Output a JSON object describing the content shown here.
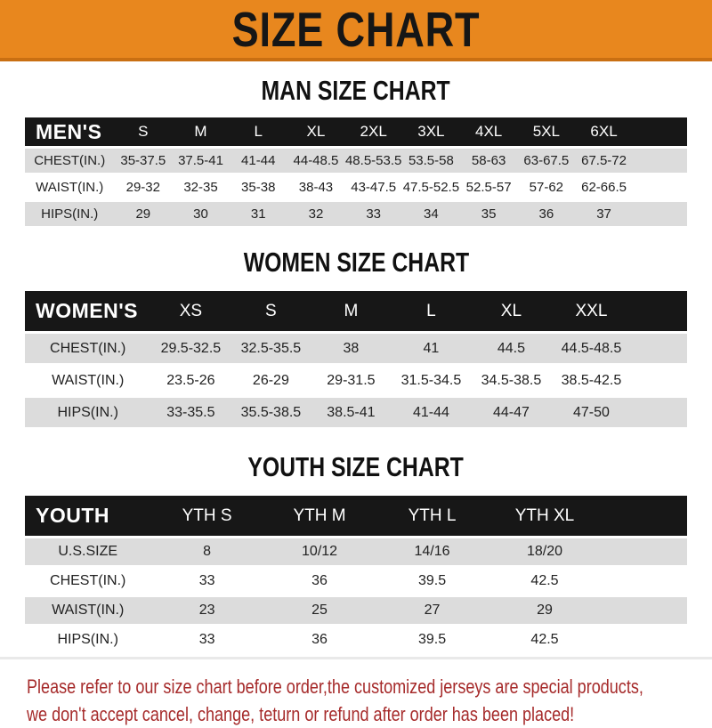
{
  "header": {
    "title": "SIZE CHART"
  },
  "chart_data": [
    {
      "type": "table",
      "title": "MAN SIZE CHART",
      "corner_label": "MEN'S",
      "columns": [
        "S",
        "M",
        "L",
        "XL",
        "2XL",
        "3XL",
        "4XL",
        "5XL",
        "6XL"
      ],
      "rows": [
        {
          "label": "CHEST(IN.)",
          "values": [
            "35-37.5",
            "37.5-41",
            "41-44",
            "44-48.5",
            "48.5-53.5",
            "53.5-58",
            "58-63",
            "63-67.5",
            "67.5-72"
          ]
        },
        {
          "label": "WAIST(IN.)",
          "values": [
            "29-32",
            "32-35",
            "35-38",
            "38-43",
            "43-47.5",
            "47.5-52.5",
            "52.5-57",
            "57-62",
            "62-66.5"
          ]
        },
        {
          "label": "HIPS(IN.)",
          "values": [
            "29",
            "30",
            "31",
            "32",
            "33",
            "34",
            "35",
            "36",
            "37"
          ]
        }
      ]
    },
    {
      "type": "table",
      "title": "WOMEN SIZE CHART",
      "corner_label": "WOMEN'S",
      "columns": [
        "XS",
        "S",
        "M",
        "L",
        "XL",
        "XXL"
      ],
      "rows": [
        {
          "label": "CHEST(IN.)",
          "values": [
            "29.5-32.5",
            "32.5-35.5",
            "38",
            "41",
            "44.5",
            "44.5-48.5"
          ]
        },
        {
          "label": "WAIST(IN.)",
          "values": [
            "23.5-26",
            "26-29",
            "29-31.5",
            "31.5-34.5",
            "34.5-38.5",
            "38.5-42.5"
          ]
        },
        {
          "label": "HIPS(IN.)",
          "values": [
            "33-35.5",
            "35.5-38.5",
            "38.5-41",
            "41-44",
            "44-47",
            "47-50"
          ]
        }
      ]
    },
    {
      "type": "table",
      "title": "YOUTH SIZE CHART",
      "corner_label": "YOUTH",
      "columns": [
        "YTH S",
        "YTH M",
        "YTH L",
        "YTH XL"
      ],
      "rows": [
        {
          "label": "U.S.SIZE",
          "values": [
            "8",
            "10/12",
            "14/16",
            "18/20"
          ]
        },
        {
          "label": "CHEST(IN.)",
          "values": [
            "33",
            "36",
            "39.5",
            "42.5"
          ]
        },
        {
          "label": "WAIST(IN.)",
          "values": [
            "23",
            "25",
            "27",
            "29"
          ]
        },
        {
          "label": "HIPS(IN.)",
          "values": [
            "33",
            "36",
            "39.5",
            "42.5"
          ]
        }
      ]
    }
  ],
  "footer": {
    "line1": "Please refer to our size chart before order,the customized jerseys are special products,",
    "line2": "we don't accept cancel, change, teturn or refund after order has been placed!"
  },
  "colors": {
    "banner_bg": "#E8871E",
    "banner_border": "#C96F12",
    "band_bg": "#171717",
    "band_text": "#FFFFFF",
    "row_alt_bg": "#DCDCDC",
    "body_text": "#222222",
    "footer_text": "#A62B2B"
  }
}
